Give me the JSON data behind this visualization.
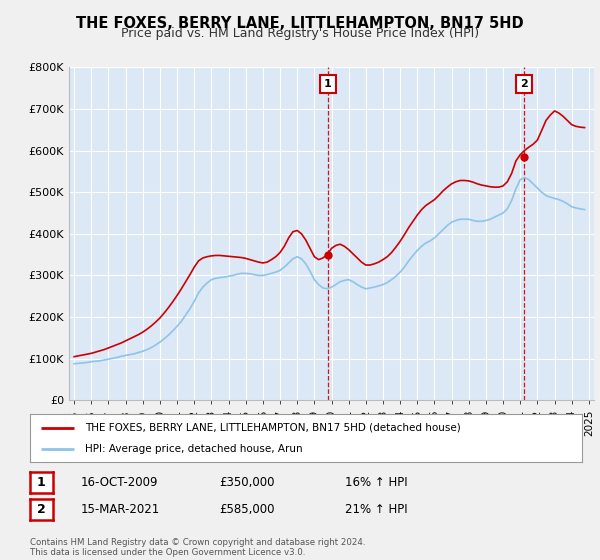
{
  "title": "THE FOXES, BERRY LANE, LITTLEHAMPTON, BN17 5HD",
  "subtitle": "Price paid vs. HM Land Registry's House Price Index (HPI)",
  "legend_line1": "THE FOXES, BERRY LANE, LITTLEHAMPTON, BN17 5HD (detached house)",
  "legend_line2": "HPI: Average price, detached house, Arun",
  "annotation1_label": "1",
  "annotation1_date": "16-OCT-2009",
  "annotation1_price": "£350,000",
  "annotation1_hpi": "16% ↑ HPI",
  "annotation2_label": "2",
  "annotation2_date": "15-MAR-2021",
  "annotation2_price": "£585,000",
  "annotation2_hpi": "21% ↑ HPI",
  "footer": "Contains HM Land Registry data © Crown copyright and database right 2024.\nThis data is licensed under the Open Government Licence v3.0.",
  "hpi_color": "#8ec4e8",
  "price_color": "#cc0000",
  "annotation_color": "#cc0000",
  "background_color": "#f0f0f0",
  "plot_bg": "#dce8f5",
  "ylim": [
    0,
    800000
  ],
  "yticks": [
    0,
    100000,
    200000,
    300000,
    400000,
    500000,
    600000,
    700000,
    800000
  ],
  "ytick_labels": [
    "£0",
    "£100K",
    "£200K",
    "£300K",
    "£400K",
    "£500K",
    "£600K",
    "£700K",
    "£800K"
  ],
  "years_hpi": [
    1995.0,
    1995.25,
    1995.5,
    1995.75,
    1996.0,
    1996.25,
    1996.5,
    1996.75,
    1997.0,
    1997.25,
    1997.5,
    1997.75,
    1998.0,
    1998.25,
    1998.5,
    1998.75,
    1999.0,
    1999.25,
    1999.5,
    1999.75,
    2000.0,
    2000.25,
    2000.5,
    2000.75,
    2001.0,
    2001.25,
    2001.5,
    2001.75,
    2002.0,
    2002.25,
    2002.5,
    2002.75,
    2003.0,
    2003.25,
    2003.5,
    2003.75,
    2004.0,
    2004.25,
    2004.5,
    2004.75,
    2005.0,
    2005.25,
    2005.5,
    2005.75,
    2006.0,
    2006.25,
    2006.5,
    2006.75,
    2007.0,
    2007.25,
    2007.5,
    2007.75,
    2008.0,
    2008.25,
    2008.5,
    2008.75,
    2009.0,
    2009.25,
    2009.5,
    2009.75,
    2010.0,
    2010.25,
    2010.5,
    2010.75,
    2011.0,
    2011.25,
    2011.5,
    2011.75,
    2012.0,
    2012.25,
    2012.5,
    2012.75,
    2013.0,
    2013.25,
    2013.5,
    2013.75,
    2014.0,
    2014.25,
    2014.5,
    2014.75,
    2015.0,
    2015.25,
    2015.5,
    2015.75,
    2016.0,
    2016.25,
    2016.5,
    2016.75,
    2017.0,
    2017.25,
    2017.5,
    2017.75,
    2018.0,
    2018.25,
    2018.5,
    2018.75,
    2019.0,
    2019.25,
    2019.5,
    2019.75,
    2020.0,
    2020.25,
    2020.5,
    2020.75,
    2021.0,
    2021.25,
    2021.5,
    2021.75,
    2022.0,
    2022.25,
    2022.5,
    2022.75,
    2023.0,
    2023.25,
    2023.5,
    2023.75,
    2024.0,
    2024.25,
    2024.5,
    2024.75
  ],
  "hpi_values": [
    88000,
    89000,
    90000,
    91000,
    93000,
    94000,
    95000,
    97000,
    99000,
    101000,
    103000,
    106000,
    108000,
    110000,
    112000,
    115000,
    118000,
    122000,
    127000,
    133000,
    140000,
    148000,
    157000,
    167000,
    178000,
    190000,
    205000,
    220000,
    238000,
    258000,
    272000,
    282000,
    290000,
    293000,
    295000,
    296000,
    298000,
    300000,
    303000,
    305000,
    305000,
    304000,
    302000,
    300000,
    300000,
    302000,
    305000,
    308000,
    312000,
    320000,
    330000,
    340000,
    345000,
    340000,
    328000,
    310000,
    290000,
    278000,
    270000,
    268000,
    272000,
    278000,
    285000,
    288000,
    290000,
    285000,
    278000,
    272000,
    268000,
    270000,
    272000,
    275000,
    278000,
    283000,
    290000,
    298000,
    308000,
    320000,
    335000,
    348000,
    360000,
    370000,
    378000,
    383000,
    390000,
    400000,
    410000,
    420000,
    428000,
    432000,
    435000,
    435000,
    435000,
    432000,
    430000,
    430000,
    432000,
    435000,
    440000,
    445000,
    450000,
    460000,
    480000,
    508000,
    530000,
    535000,
    530000,
    520000,
    510000,
    500000,
    492000,
    488000,
    485000,
    482000,
    478000,
    472000,
    465000,
    462000,
    460000,
    458000
  ],
  "years_price": [
    1995.0,
    1995.25,
    1995.5,
    1995.75,
    1996.0,
    1996.25,
    1996.5,
    1996.75,
    1997.0,
    1997.25,
    1997.5,
    1997.75,
    1998.0,
    1998.25,
    1998.5,
    1998.75,
    1999.0,
    1999.25,
    1999.5,
    1999.75,
    2000.0,
    2000.25,
    2000.5,
    2000.75,
    2001.0,
    2001.25,
    2001.5,
    2001.75,
    2002.0,
    2002.25,
    2002.5,
    2002.75,
    2003.0,
    2003.25,
    2003.5,
    2003.75,
    2004.0,
    2004.25,
    2004.5,
    2004.75,
    2005.0,
    2005.25,
    2005.5,
    2005.75,
    2006.0,
    2006.25,
    2006.5,
    2006.75,
    2007.0,
    2007.25,
    2007.5,
    2007.75,
    2008.0,
    2008.25,
    2008.5,
    2008.75,
    2009.0,
    2009.25,
    2009.5,
    2009.75,
    2010.0,
    2010.25,
    2010.5,
    2010.75,
    2011.0,
    2011.25,
    2011.5,
    2011.75,
    2012.0,
    2012.25,
    2012.5,
    2012.75,
    2013.0,
    2013.25,
    2013.5,
    2013.75,
    2014.0,
    2014.25,
    2014.5,
    2014.75,
    2015.0,
    2015.25,
    2015.5,
    2015.75,
    2016.0,
    2016.25,
    2016.5,
    2016.75,
    2017.0,
    2017.25,
    2017.5,
    2017.75,
    2018.0,
    2018.25,
    2018.5,
    2018.75,
    2019.0,
    2019.25,
    2019.5,
    2019.75,
    2020.0,
    2020.25,
    2020.5,
    2020.75,
    2021.0,
    2021.25,
    2021.5,
    2021.75,
    2022.0,
    2022.25,
    2022.5,
    2022.75,
    2023.0,
    2023.25,
    2023.5,
    2023.75,
    2024.0,
    2024.25,
    2024.5,
    2024.75
  ],
  "price_values": [
    105000,
    107000,
    109000,
    111000,
    113000,
    116000,
    119000,
    122000,
    126000,
    130000,
    134000,
    138000,
    143000,
    148000,
    153000,
    158000,
    164000,
    171000,
    179000,
    188000,
    198000,
    210000,
    223000,
    237000,
    252000,
    268000,
    285000,
    302000,
    320000,
    335000,
    342000,
    345000,
    347000,
    348000,
    348000,
    347000,
    346000,
    345000,
    344000,
    343000,
    341000,
    338000,
    335000,
    332000,
    330000,
    332000,
    338000,
    345000,
    355000,
    370000,
    390000,
    405000,
    408000,
    400000,
    385000,
    365000,
    345000,
    338000,
    342000,
    350000,
    365000,
    372000,
    375000,
    370000,
    362000,
    352000,
    342000,
    332000,
    325000,
    325000,
    328000,
    332000,
    338000,
    345000,
    355000,
    368000,
    382000,
    398000,
    415000,
    430000,
    445000,
    458000,
    468000,
    475000,
    482000,
    492000,
    503000,
    512000,
    520000,
    525000,
    528000,
    528000,
    527000,
    524000,
    520000,
    517000,
    515000,
    513000,
    512000,
    512000,
    515000,
    525000,
    545000,
    575000,
    590000,
    600000,
    608000,
    615000,
    625000,
    648000,
    672000,
    685000,
    695000,
    690000,
    682000,
    672000,
    662000,
    658000,
    656000,
    655000
  ],
  "sale1_x": 2009.79,
  "sale1_y": 350000,
  "sale2_x": 2021.21,
  "sale2_y": 585000,
  "vline1_x": 2009.79,
  "vline2_x": 2021.21,
  "xlim_left": 1994.7,
  "xlim_right": 2025.3,
  "xticks": [
    1995,
    1996,
    1997,
    1998,
    1999,
    2000,
    2001,
    2002,
    2003,
    2004,
    2005,
    2006,
    2007,
    2008,
    2009,
    2010,
    2011,
    2012,
    2013,
    2014,
    2015,
    2016,
    2017,
    2018,
    2019,
    2020,
    2021,
    2022,
    2023,
    2024,
    2025
  ]
}
